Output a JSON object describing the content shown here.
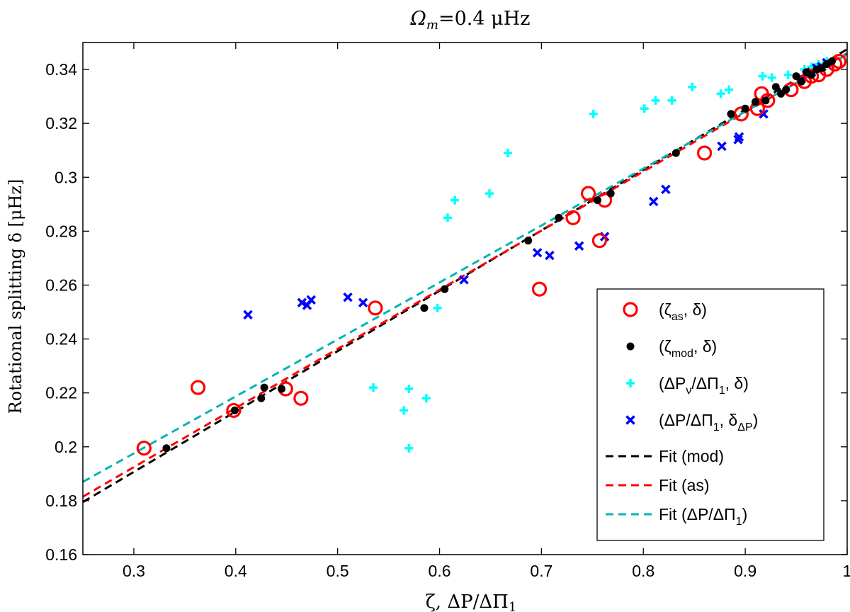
{
  "chart_data": {
    "type": "scatter",
    "title": "Ω",
    "title_sub": "m",
    "title_rest": "=0.4 μHz",
    "xlabel": "ζ, ΔP/ΔΠ",
    "xlabel_sub": "1",
    "ylabel": "Rotational splitting δ [μHz]",
    "xlim": [
      0.25,
      1.0
    ],
    "ylim": [
      0.16,
      0.35
    ],
    "xticks": [
      "0.3",
      "0.4",
      "0.5",
      "0.6",
      "0.7",
      "0.8",
      "0.9",
      "1"
    ],
    "yticks": [
      "0.16",
      "0.18",
      "0.2",
      "0.22",
      "0.24",
      "0.26",
      "0.28",
      "0.3",
      "0.32",
      "0.34"
    ],
    "grid": false,
    "legend_position": "bottom-right",
    "series": [
      {
        "name": "(ζas, δ)",
        "marker": "circle-open",
        "color": "#ff0000",
        "x": [
          0.31,
          0.363,
          0.398,
          0.449,
          0.464,
          0.537,
          0.698,
          0.731,
          0.746,
          0.757,
          0.762,
          0.86,
          0.896,
          0.912,
          0.916,
          0.922,
          0.945,
          0.958,
          0.965,
          0.972,
          0.98,
          0.988,
          0.992
        ],
        "y": [
          0.1995,
          0.222,
          0.2135,
          0.2215,
          0.218,
          0.2515,
          0.2585,
          0.285,
          0.294,
          0.2765,
          0.2915,
          0.309,
          0.3235,
          0.3255,
          0.331,
          0.3285,
          0.3325,
          0.3355,
          0.3375,
          0.338,
          0.34,
          0.342,
          0.343
        ]
      },
      {
        "name": "(ζmod, δ)",
        "marker": "dot",
        "color": "#000000",
        "x": [
          0.332,
          0.399,
          0.425,
          0.428,
          0.445,
          0.585,
          0.605,
          0.687,
          0.717,
          0.755,
          0.768,
          0.832,
          0.886,
          0.9,
          0.91,
          0.92,
          0.93,
          0.935,
          0.94,
          0.95,
          0.955,
          0.96,
          0.965,
          0.97,
          0.975,
          0.98,
          0.985
        ],
        "y": [
          0.1995,
          0.2135,
          0.218,
          0.222,
          0.2215,
          0.2515,
          0.2585,
          0.2765,
          0.285,
          0.2915,
          0.294,
          0.309,
          0.3235,
          0.3255,
          0.328,
          0.3285,
          0.3335,
          0.331,
          0.3325,
          0.3375,
          0.3355,
          0.339,
          0.338,
          0.34,
          0.3405,
          0.342,
          0.343
        ]
      },
      {
        "name": "(ΔPν/ΔΠ1, δ)",
        "marker": "plus",
        "color": "#00ffff",
        "x": [
          0.535,
          0.565,
          0.57,
          0.57,
          0.587,
          0.598,
          0.608,
          0.615,
          0.649,
          0.667,
          0.751,
          0.801,
          0.812,
          0.828,
          0.848,
          0.876,
          0.884,
          0.917,
          0.926,
          0.942,
          0.958,
          0.965,
          0.972,
          0.98
        ],
        "y": [
          0.222,
          0.2135,
          0.2215,
          0.1995,
          0.218,
          0.2515,
          0.285,
          0.2915,
          0.294,
          0.309,
          0.3235,
          0.3255,
          0.3285,
          0.3285,
          0.3335,
          0.331,
          0.3325,
          0.3375,
          0.337,
          0.338,
          0.34,
          0.341,
          0.342,
          0.343
        ]
      },
      {
        "name": "(ΔP/ΔΠ1, δΔP)",
        "marker": "cross",
        "color": "#0000ff",
        "x": [
          0.412,
          0.465,
          0.47,
          0.474,
          0.51,
          0.525,
          0.624,
          0.696,
          0.708,
          0.737,
          0.762,
          0.81,
          0.822,
          0.877,
          0.893,
          0.894,
          0.918,
          0.955,
          0.96,
          0.965,
          0.97,
          0.975,
          0.98
        ],
        "y": [
          0.249,
          0.2535,
          0.2525,
          0.2545,
          0.2555,
          0.2535,
          0.262,
          0.272,
          0.271,
          0.2745,
          0.278,
          0.291,
          0.2955,
          0.3115,
          0.314,
          0.315,
          0.3235,
          0.3365,
          0.338,
          0.339,
          0.3405,
          0.341,
          0.3425
        ]
      }
    ],
    "fits": [
      {
        "name": "Fit (mod)",
        "color": "#000000",
        "x": [
          0.25,
          1.0
        ],
        "y": [
          0.1795,
          0.3475
        ]
      },
      {
        "name": "Fit (as)",
        "color": "#ff0000",
        "x": [
          0.25,
          1.0
        ],
        "y": [
          0.1815,
          0.346
        ]
      },
      {
        "name": "Fit (ΔP/ΔΠ1)",
        "color": "#00b4b4",
        "x": [
          0.25,
          1.0
        ],
        "y": [
          0.187,
          0.3455
        ]
      }
    ]
  },
  "legend": {
    "entries": [
      {
        "main": "(ζ",
        "sub": "as",
        "rest": ", δ)"
      },
      {
        "main": "(ζ",
        "sub": "mod",
        "rest": ", δ)"
      },
      {
        "main": "(ΔP",
        "sub": "ν",
        "mid": "/ΔΠ",
        "sub2": "1",
        "rest": ", δ)"
      },
      {
        "main": "(ΔP/ΔΠ",
        "sub": "1",
        "mid": ", δ",
        "sub2": "ΔP",
        "rest": ")"
      },
      {
        "main": "Fit (mod)"
      },
      {
        "main": "Fit (as)"
      },
      {
        "main": "Fit (ΔP/ΔΠ",
        "sub": "1",
        "rest": ")"
      }
    ]
  }
}
